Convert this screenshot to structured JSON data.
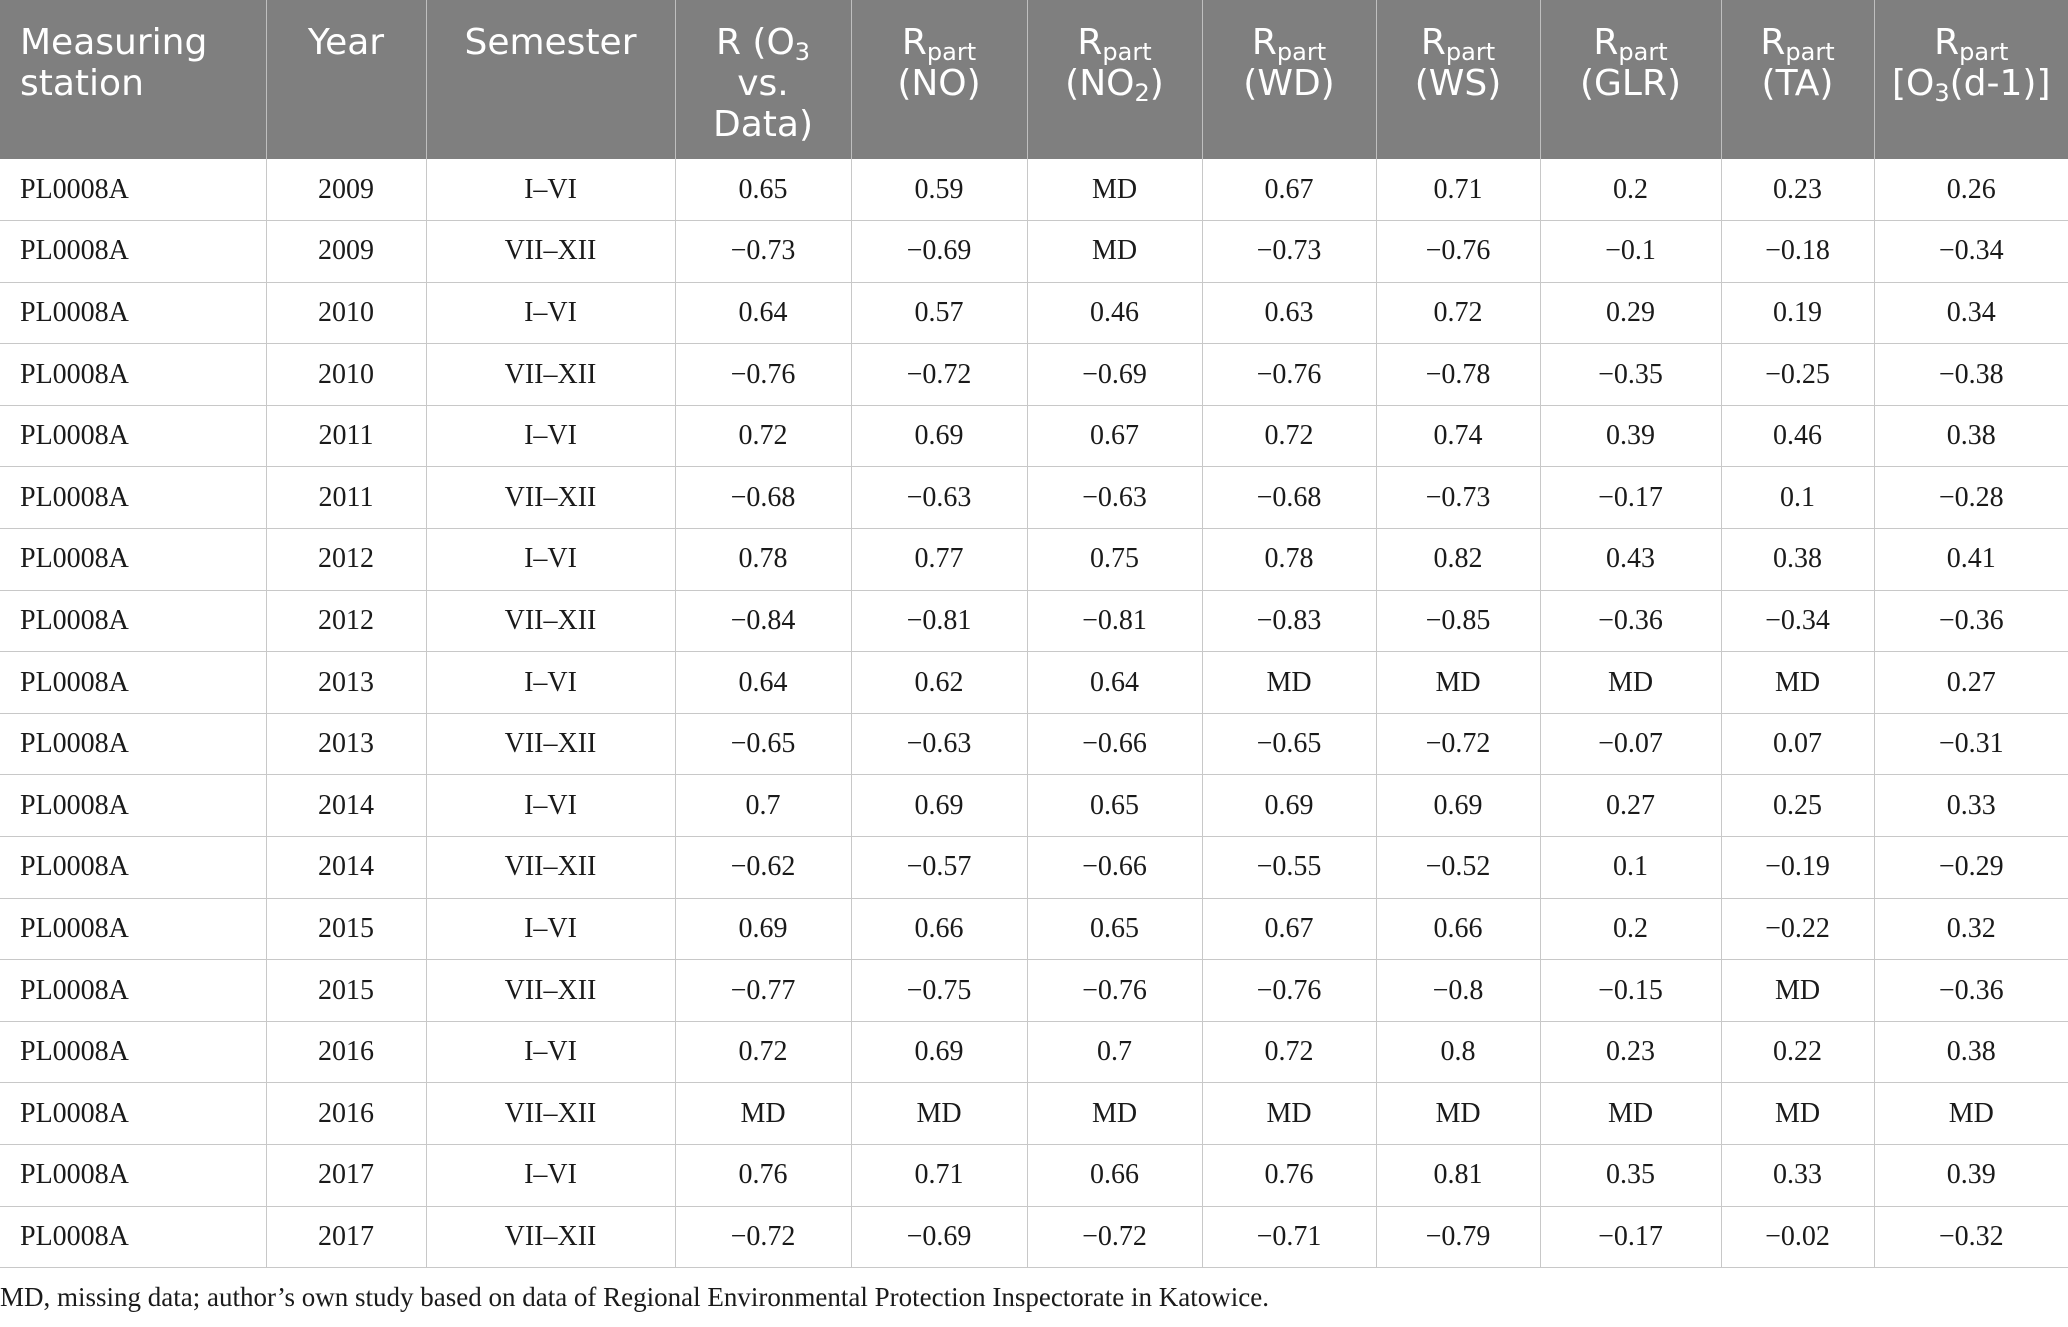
{
  "table": {
    "headers": {
      "station": "Measuring station",
      "year": "Year",
      "semester": "Semester",
      "r_prefix": "R (O",
      "r_sub": "3",
      "r_suffix": "vs. Data)",
      "rpart": "R",
      "rpart_sub": "part",
      "no": "(NO)",
      "no2_prefix": "(NO",
      "no2_sub": "2",
      "no2_suffix": ")",
      "wd": "(WD)",
      "ws": "(WS)",
      "glr": "(GLR)",
      "ta": "(TA)",
      "o3_prefix": "[O",
      "o3_sub": "3",
      "o3_suffix": "(d-1)]"
    },
    "rows": [
      [
        "PL0008A",
        "2009",
        "I–VI",
        "0.65",
        "0.59",
        "MD",
        "0.67",
        "0.71",
        "0.2",
        "0.23",
        "0.26"
      ],
      [
        "PL0008A",
        "2009",
        "VII–XII",
        "−0.73",
        "−0.69",
        "MD",
        "−0.73",
        "−0.76",
        "−0.1",
        "−0.18",
        "−0.34"
      ],
      [
        "PL0008A",
        "2010",
        "I–VI",
        "0.64",
        "0.57",
        "0.46",
        "0.63",
        "0.72",
        "0.29",
        "0.19",
        "0.34"
      ],
      [
        "PL0008A",
        "2010",
        "VII–XII",
        "−0.76",
        "−0.72",
        "−0.69",
        "−0.76",
        "−0.78",
        "−0.35",
        "−0.25",
        "−0.38"
      ],
      [
        "PL0008A",
        "2011",
        "I–VI",
        "0.72",
        "0.69",
        "0.67",
        "0.72",
        "0.74",
        "0.39",
        "0.46",
        "0.38"
      ],
      [
        "PL0008A",
        "2011",
        "VII–XII",
        "−0.68",
        "−0.63",
        "−0.63",
        "−0.68",
        "−0.73",
        "−0.17",
        "0.1",
        "−0.28"
      ],
      [
        "PL0008A",
        "2012",
        "I–VI",
        "0.78",
        "0.77",
        "0.75",
        "0.78",
        "0.82",
        "0.43",
        "0.38",
        "0.41"
      ],
      [
        "PL0008A",
        "2012",
        "VII–XII",
        "−0.84",
        "−0.81",
        "−0.81",
        "−0.83",
        "−0.85",
        "−0.36",
        "−0.34",
        "−0.36"
      ],
      [
        "PL0008A",
        "2013",
        "I–VI",
        "0.64",
        "0.62",
        "0.64",
        "MD",
        "MD",
        "MD",
        "MD",
        "0.27"
      ],
      [
        "PL0008A",
        "2013",
        "VII–XII",
        "−0.65",
        "−0.63",
        "−0.66",
        "−0.65",
        "−0.72",
        "−0.07",
        "0.07",
        "−0.31"
      ],
      [
        "PL0008A",
        "2014",
        "I–VI",
        "0.7",
        "0.69",
        "0.65",
        "0.69",
        "0.69",
        "0.27",
        "0.25",
        "0.33"
      ],
      [
        "PL0008A",
        "2014",
        "VII–XII",
        "−0.62",
        "−0.57",
        "−0.66",
        "−0.55",
        "−0.52",
        "0.1",
        "−0.19",
        "−0.29"
      ],
      [
        "PL0008A",
        "2015",
        "I–VI",
        "0.69",
        "0.66",
        "0.65",
        "0.67",
        "0.66",
        "0.2",
        "−0.22",
        "0.32"
      ],
      [
        "PL0008A",
        "2015",
        "VII–XII",
        "−0.77",
        "−0.75",
        "−0.76",
        "−0.76",
        "−0.8",
        "−0.15",
        "MD",
        "−0.36"
      ],
      [
        "PL0008A",
        "2016",
        "I–VI",
        "0.72",
        "0.69",
        "0.7",
        "0.72",
        "0.8",
        "0.23",
        "0.22",
        "0.38"
      ],
      [
        "PL0008A",
        "2016",
        "VII–XII",
        "MD",
        "MD",
        "MD",
        "MD",
        "MD",
        "MD",
        "MD",
        "MD"
      ],
      [
        "PL0008A",
        "2017",
        "I–VI",
        "0.76",
        "0.71",
        "0.66",
        "0.76",
        "0.81",
        "0.35",
        "0.33",
        "0.39"
      ],
      [
        "PL0008A",
        "2017",
        "VII–XII",
        "−0.72",
        "−0.69",
        "−0.72",
        "−0.71",
        "−0.79",
        "−0.17",
        "−0.02",
        "−0.32"
      ]
    ]
  },
  "footnote": "MD, missing data; author’s own study based on data of Regional Environmental Protection Inspectorate in Katowice.",
  "colors": {
    "header_bg": "#7f7f7f",
    "header_text": "#ffffff",
    "grid": "#c8c8c8"
  }
}
